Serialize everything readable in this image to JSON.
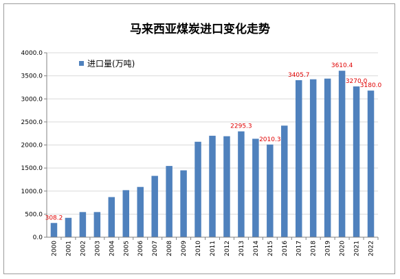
{
  "chart_data": {
    "type": "bar",
    "title": "马来西亚煤炭进口变化走势",
    "xlabel": "",
    "ylabel": "",
    "ylim": [
      0,
      4000
    ],
    "yticks": [
      0,
      500,
      1000,
      1500,
      2000,
      2500,
      3000,
      3500,
      4000
    ],
    "ytick_labels": [
      "0.0",
      "500.0",
      "1000.0",
      "1500.0",
      "2000.0",
      "2500.0",
      "3000.0",
      "3500.0",
      "4000.0"
    ],
    "categories": [
      "2000",
      "2001",
      "2002",
      "2003",
      "2004",
      "2005",
      "2006",
      "2007",
      "2008",
      "2009",
      "2010",
      "2011",
      "2012",
      "2013",
      "2014",
      "2015",
      "2016",
      "2017",
      "2018",
      "2019",
      "2020",
      "2021",
      "2022"
    ],
    "series": [
      {
        "name": "进口量(万吨)",
        "color": "#4f81bd",
        "values": [
          308.2,
          420,
          545,
          545,
          870,
          1020,
          1090,
          1330,
          1545,
          1450,
          2070,
          2200,
          2190,
          2295.3,
          2135,
          2010.3,
          2420,
          3405.7,
          3425,
          3440,
          3610.4,
          3270.0,
          3180.0
        ]
      }
    ],
    "data_labels": [
      {
        "category": "2000",
        "text": "308.2"
      },
      {
        "category": "2013",
        "text": "2295.3"
      },
      {
        "category": "2015",
        "text": "2010.3"
      },
      {
        "category": "2017",
        "text": "3405.7"
      },
      {
        "category": "2020",
        "text": "3610.4"
      },
      {
        "category": "2021",
        "text": "3270.0"
      },
      {
        "category": "2022",
        "text": "3180.0"
      }
    ],
    "data_label_color": "#e00000",
    "legend_position": "top-left",
    "grid": true,
    "gridline_color": "#d9d9d9"
  }
}
